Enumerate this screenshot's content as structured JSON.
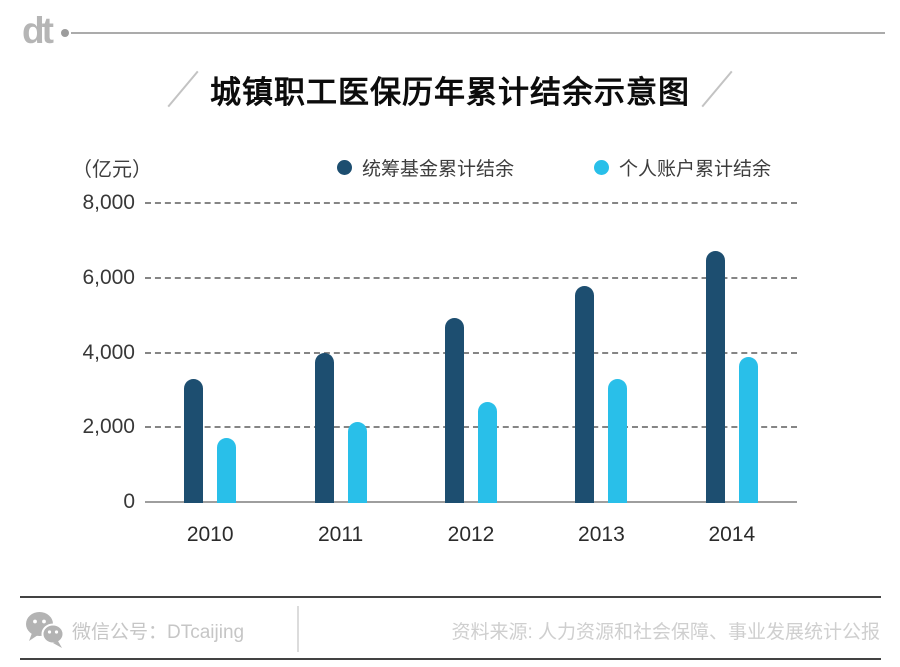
{
  "logo_text": "dt",
  "title": "城镇职工医保历年累计结余示意图",
  "unit_label": "（亿元）",
  "legend": {
    "series1": "统筹基金累计结余",
    "series2": "个人账户累计结余"
  },
  "footer": {
    "wechat_label": "微信公号：DTcaijing",
    "source_label": "资料来源: 人力资源和社会保障、事业发展统计公报"
  },
  "colors": {
    "series1": "#1d4e70",
    "series2": "#29bfe9",
    "grid": "#858585",
    "axis": "#9e9e9e"
  },
  "chart_data": {
    "type": "bar",
    "title": "城镇职工医保历年累计结余示意图",
    "unit": "亿元",
    "categories": [
      "2010",
      "2011",
      "2012",
      "2013",
      "2014"
    ],
    "series": [
      {
        "name": "统筹基金累计结余",
        "color": "#1d4e70",
        "values": [
          3314,
          4015,
          4947,
          5794,
          6732
        ]
      },
      {
        "name": "个人账户累计结余",
        "color": "#29bfe9",
        "values": [
          1734,
          2165,
          2697,
          3323,
          3913
        ]
      }
    ],
    "xlabel": "",
    "ylabel": "（亿元）",
    "ylim": [
      0,
      8000
    ],
    "yticks": [
      {
        "value": 0,
        "label": "0"
      },
      {
        "value": 2000,
        "label": "2,000"
      },
      {
        "value": 4000,
        "label": "4,000"
      },
      {
        "value": 6000,
        "label": "6,000"
      },
      {
        "value": 8000,
        "label": "8,000"
      }
    ],
    "grid": "horizontal-dashed",
    "legend_position": "top"
  }
}
